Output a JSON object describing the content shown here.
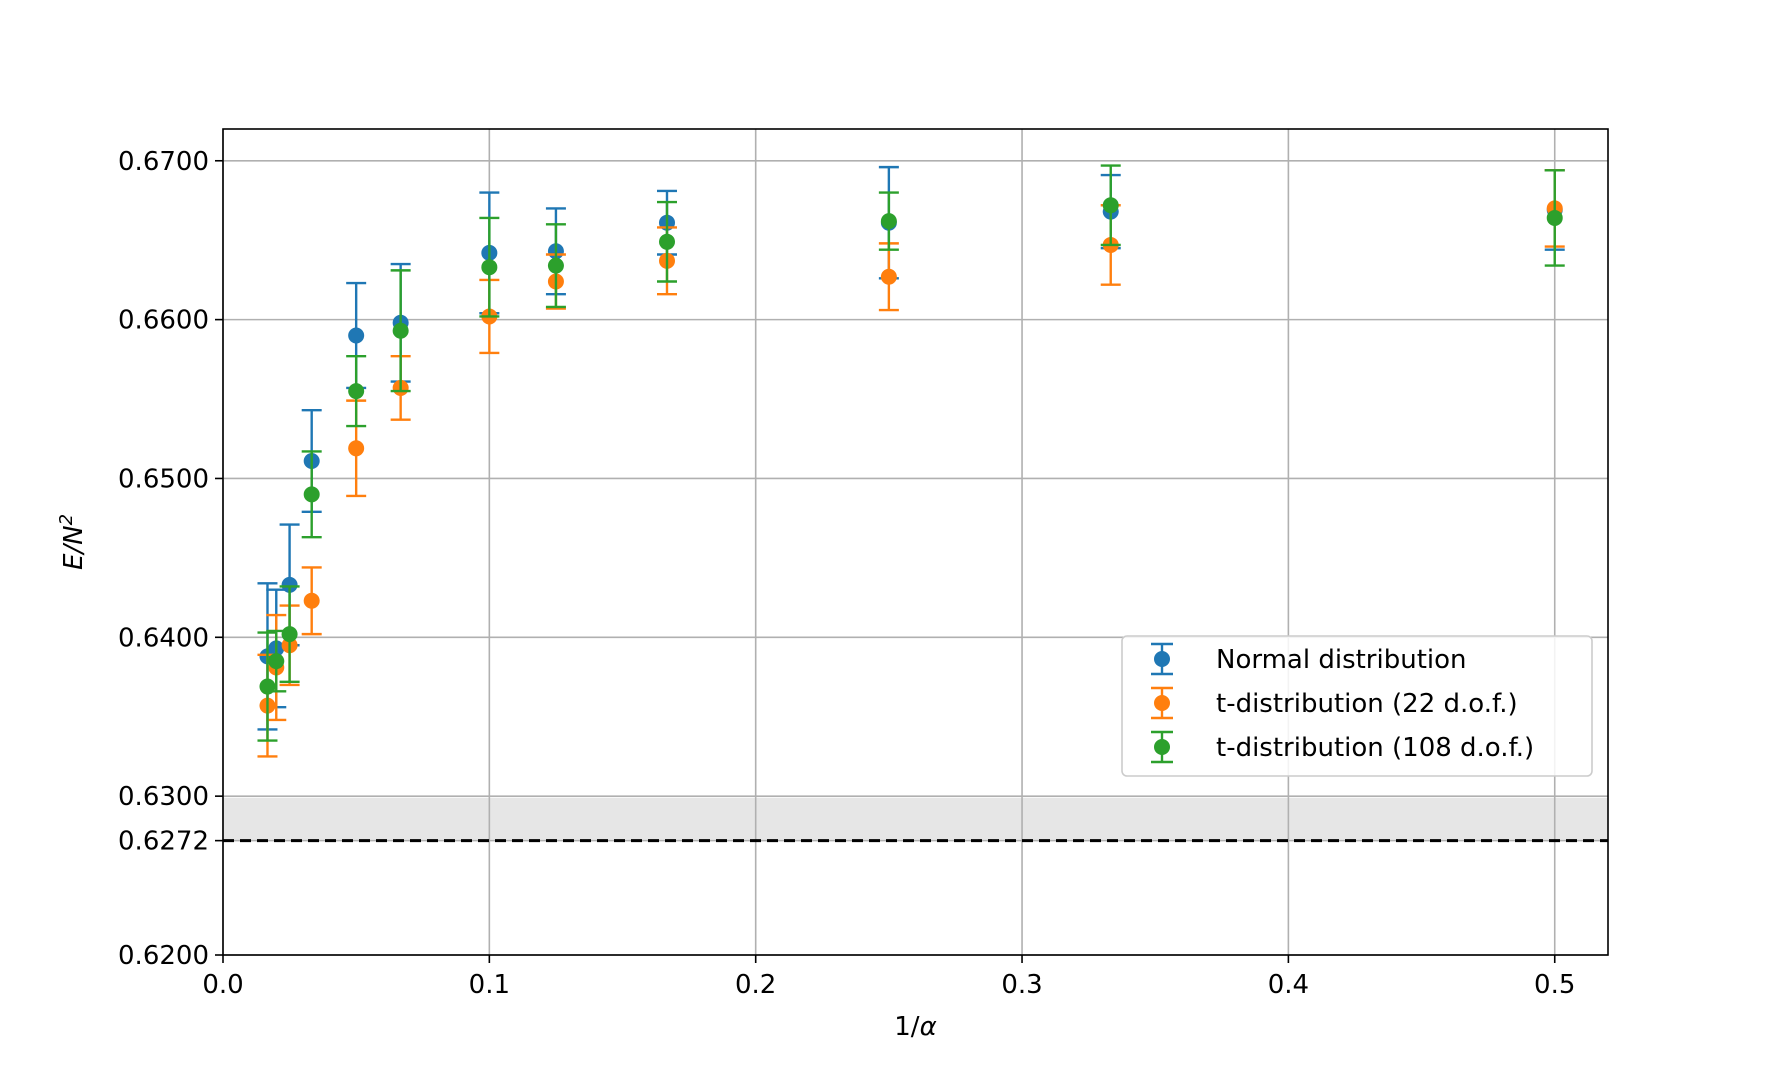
{
  "chart_data": {
    "type": "scatter",
    "title": "",
    "xlabel": "1/α",
    "ylabel_main": "E/N",
    "ylabel_sup": "2",
    "xlim": [
      0.0,
      0.52
    ],
    "ylim": [
      0.62,
      0.672
    ],
    "xticks": [
      {
        "value": 0.0,
        "label": "0.0"
      },
      {
        "value": 0.1,
        "label": "0.1"
      },
      {
        "value": 0.2,
        "label": "0.2"
      },
      {
        "value": 0.3,
        "label": "0.3"
      },
      {
        "value": 0.4,
        "label": "0.4"
      },
      {
        "value": 0.5,
        "label": "0.5"
      }
    ],
    "yticks": [
      {
        "value": 0.62,
        "label": "0.6200"
      },
      {
        "value": 0.6272,
        "label": "0.6272"
      },
      {
        "value": 0.63,
        "label": "0.6300"
      },
      {
        "value": 0.64,
        "label": "0.6400"
      },
      {
        "value": 0.65,
        "label": "0.6500"
      },
      {
        "value": 0.66,
        "label": "0.6600"
      },
      {
        "value": 0.67,
        "label": "0.6700"
      }
    ],
    "grid": true,
    "reference_line": {
      "value": 0.6272,
      "band": [
        0.62715,
        0.6299
      ],
      "style": "dashed",
      "color": "#000000",
      "band_color": "#e6e6e6"
    },
    "legend_position": "center-right",
    "series": [
      {
        "name": "Normal distribution",
        "color": "#1f77b4",
        "x": [
          0.0167,
          0.02,
          0.025,
          0.0333,
          0.05,
          0.0667,
          0.1,
          0.125,
          0.1667,
          0.25,
          0.3333,
          0.5
        ],
        "y": [
          0.6388,
          0.6393,
          0.6433,
          0.6511,
          0.659,
          0.6598,
          0.6642,
          0.6643,
          0.6661,
          0.6661,
          0.6668,
          0.6669
        ],
        "err": [
          0.0046,
          0.0037,
          0.0038,
          0.0032,
          0.0033,
          0.0037,
          0.0038,
          0.0027,
          0.002,
          0.0035,
          0.0023,
          0.0025
        ]
      },
      {
        "name": "t-distribution (22 d.o.f.)",
        "color": "#ff7f0e",
        "x": [
          0.0167,
          0.02,
          0.025,
          0.0333,
          0.05,
          0.0667,
          0.1,
          0.125,
          0.1667,
          0.25,
          0.3333,
          0.5
        ],
        "y": [
          0.6357,
          0.6381,
          0.6395,
          0.6423,
          0.6519,
          0.6557,
          0.6602,
          0.6624,
          0.6637,
          0.6627,
          0.6647,
          0.667
        ],
        "err": [
          0.0032,
          0.0033,
          0.0025,
          0.0021,
          0.003,
          0.002,
          0.0023,
          0.0017,
          0.0021,
          0.0021,
          0.0025,
          0.0024
        ]
      },
      {
        "name": "t-distribution (108 d.o.f.)",
        "color": "#2ca02c",
        "x": [
          0.0167,
          0.02,
          0.025,
          0.0333,
          0.05,
          0.0667,
          0.1,
          0.125,
          0.1667,
          0.25,
          0.3333,
          0.5
        ],
        "y": [
          0.6369,
          0.6385,
          0.6402,
          0.649,
          0.6555,
          0.6593,
          0.6633,
          0.6634,
          0.6649,
          0.6662,
          0.6672,
          0.6664
        ],
        "err": [
          0.0034,
          0.0019,
          0.003,
          0.0027,
          0.0022,
          0.0038,
          0.0031,
          0.0026,
          0.0025,
          0.0018,
          0.0025,
          0.003
        ]
      }
    ]
  }
}
